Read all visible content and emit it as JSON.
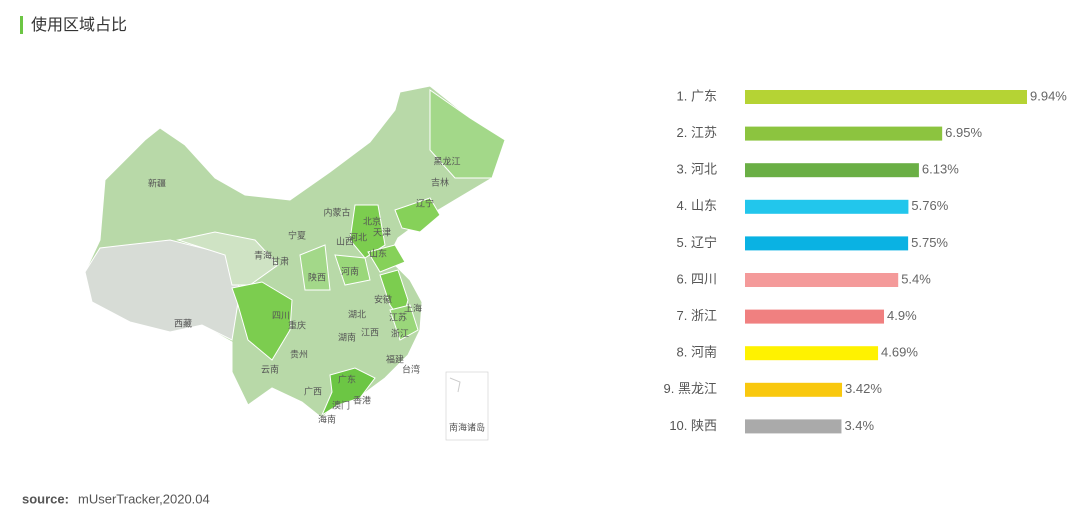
{
  "chart_data": {
    "type": "bar",
    "orientation": "horizontal",
    "title": "使用区域占比",
    "categories": [
      "1.  广东",
      "2.  江苏",
      "3.  河北",
      "4.  山东",
      "5.  辽宁",
      "6.  四川",
      "7.  浙江",
      "8.  河南",
      "9.  黑龙江",
      "10.  陕西"
    ],
    "values": [
      9.94,
      6.95,
      6.13,
      5.76,
      5.75,
      5.4,
      4.9,
      4.69,
      3.42,
      3.4
    ],
    "value_labels": [
      "9.94%",
      "6.95%",
      "6.13%",
      "5.76%",
      "5.75%",
      "5.4%",
      "4.9%",
      "4.69%",
      "3.42%",
      "3.4%"
    ],
    "colors": [
      "#b5d334",
      "#8cc43f",
      "#6aaf45",
      "#22c6ec",
      "#0ab2e3",
      "#f49a9a",
      "#f08080",
      "#fff200",
      "#f9c80e",
      "#aaaaaa"
    ],
    "map_labels": [
      "新疆",
      "西藏",
      "青海",
      "甘肃",
      "宁夏",
      "内蒙古",
      "陕西",
      "山西",
      "北京",
      "天津",
      "河北",
      "辽宁",
      "吉林",
      "黑龙江",
      "山东",
      "河南",
      "安徽",
      "江苏",
      "上海",
      "湖北",
      "四川",
      "重庆",
      "贵州",
      "云南",
      "湖南",
      "江西",
      "浙江",
      "福建",
      "台湾",
      "广西",
      "广东",
      "澳门",
      "香港",
      "海南",
      "南海诸岛"
    ],
    "source_label": "source:",
    "source": "mUserTracker,2020.04"
  }
}
